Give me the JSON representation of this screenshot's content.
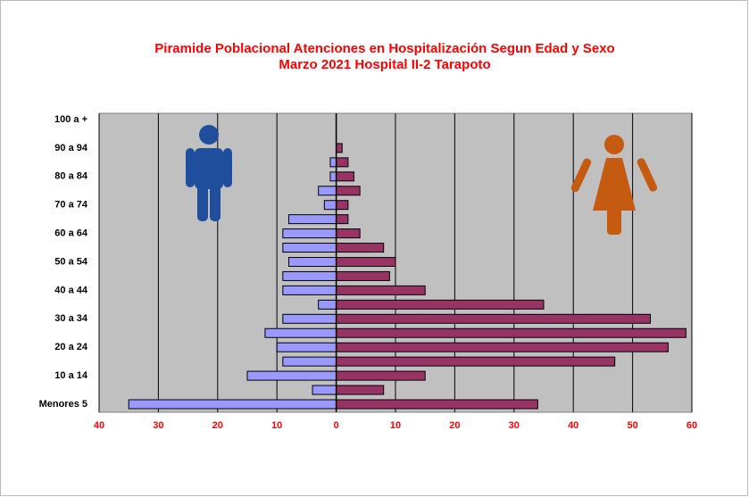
{
  "chart_data": {
    "type": "pyramid",
    "title": [
      "Piramide Poblacional  Atenciones en Hospitalización Segun Edad y Sexo",
      "Marzo 2021 Hospital II-2 Tarapoto"
    ],
    "categories": [
      "Menores 5",
      null,
      "10 a 14",
      null,
      "20 a 24",
      null,
      "30 a 34",
      null,
      "40 a 44",
      null,
      "50 a 54",
      null,
      "60 a 64",
      null,
      "70 a 74",
      null,
      "80 a 84",
      null,
      "90 a 94",
      null,
      "100 a +"
    ],
    "series": [
      {
        "color": "#9999ff",
        "values": [
          -35,
          -4,
          -15,
          -9,
          -10,
          -12,
          -9,
          -3,
          -9,
          -9,
          -8,
          -9,
          -9,
          -8,
          -2,
          -3,
          -1,
          -1,
          0,
          0,
          0
        ]
      },
      {
        "color": "#993366",
        "values": [
          34,
          8,
          15,
          47,
          56,
          59,
          53,
          35,
          15,
          9,
          10,
          8,
          4,
          2,
          2,
          4,
          3,
          2,
          1,
          0,
          0
        ]
      }
    ],
    "xlim": [
      -40,
      60
    ],
    "xticks": [
      {
        "value": -40,
        "label": "40"
      },
      {
        "value": -30,
        "label": "30"
      },
      {
        "value": -20,
        "label": "20"
      },
      {
        "value": -10,
        "label": "10"
      },
      0,
      10,
      20,
      30,
      40,
      50,
      60
    ],
    "grid": true
  }
}
